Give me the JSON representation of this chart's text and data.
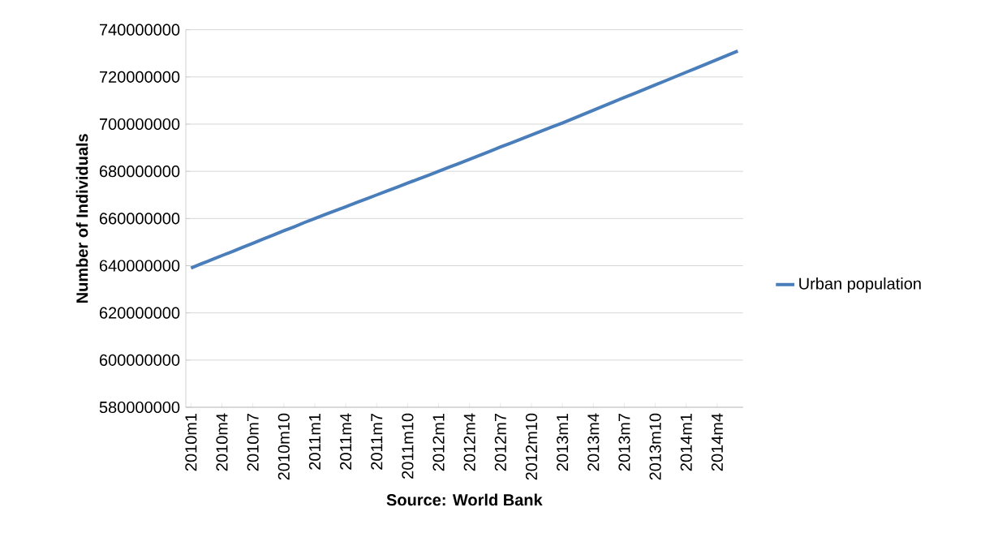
{
  "chart_data": {
    "type": "line",
    "ylabel": "Number of Individuals",
    "annotations": [
      "Source: World Bank"
    ],
    "categories": [
      "2010m1",
      null,
      null,
      "2010m4",
      null,
      null,
      "2010m7",
      null,
      null,
      "2010m10",
      null,
      null,
      "2011m1",
      null,
      null,
      "2011m4",
      null,
      null,
      "2011m7",
      null,
      null,
      "2011m10",
      null,
      null,
      "2012m1",
      null,
      null,
      "2012m4",
      null,
      null,
      "2012m7",
      null,
      null,
      "2012m10",
      null,
      null,
      "2013m1",
      null,
      null,
      "2013m4",
      null,
      null,
      "2013m7",
      null,
      null,
      "2013m10",
      null,
      null,
      "2014m1",
      null,
      null,
      "2014m4",
      null,
      null
    ],
    "series": [
      {
        "name": "Urban population",
        "color": "#4a7ebb",
        "values": [
          639000000,
          640800000,
          642500000,
          644300000,
          646000000,
          647800000,
          649500000,
          651300000,
          653000000,
          654800000,
          656500000,
          658300000,
          660000000,
          661700000,
          663300000,
          665000000,
          666700000,
          668300000,
          670000000,
          671700000,
          673300000,
          675000000,
          676700000,
          678300000,
          680000000,
          681700000,
          683400000,
          685100000,
          686800000,
          688500000,
          690300000,
          692000000,
          693700000,
          695400000,
          697100000,
          698800000,
          700500000,
          702300000,
          704100000,
          705900000,
          707700000,
          709500000,
          711300000,
          713000000,
          714800000,
          716600000,
          718400000,
          720200000,
          722000000,
          723800000,
          725600000,
          727400000,
          729200000,
          731000000
        ]
      }
    ],
    "ylim": [
      580000000,
      740000000
    ],
    "yticks": [
      580000000,
      600000000,
      620000000,
      640000000,
      660000000,
      680000000,
      700000000,
      720000000,
      740000000
    ],
    "grid": "y",
    "legend": "right",
    "marker": "none",
    "line_style": "solid"
  }
}
